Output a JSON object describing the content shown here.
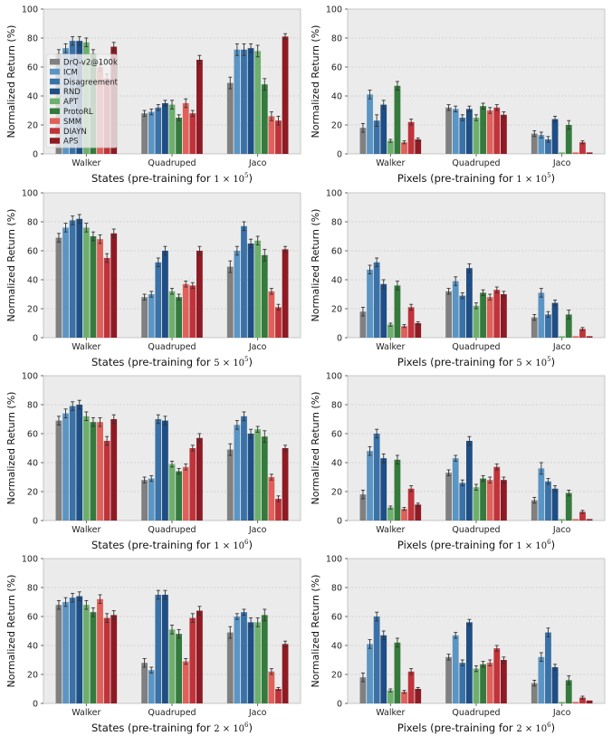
{
  "legend": [
    {
      "name": "DrQ-v2@100k",
      "color": "#808080"
    },
    {
      "name": "ICM",
      "color": "#5b95c3"
    },
    {
      "name": "Disagreement",
      "color": "#3a72a8"
    },
    {
      "name": "RND",
      "color": "#1f4e85"
    },
    {
      "name": "APT",
      "color": "#6db06d"
    },
    {
      "name": "ProtoRL",
      "color": "#357a3d"
    },
    {
      "name": "SMM",
      "color": "#e0605a"
    },
    {
      "name": "DIAYN",
      "color": "#c0333a"
    },
    {
      "name": "APS",
      "color": "#8e1b24"
    }
  ],
  "chart_data": [
    {
      "type": "bar",
      "panel": "states-1e5",
      "categories": [
        "Walker",
        "Quadruped",
        "Jaco"
      ],
      "xlabel": "States (pre-training for ",
      "xlabel_math": "1 × 10",
      "xlabel_exp": "5",
      "ylabel": "Normalized Return (%)",
      "ylim": [
        0,
        100
      ],
      "yticks": [
        "0",
        "20",
        "40",
        "60",
        "80",
        "100"
      ],
      "legend_placement": "top-left",
      "values": [
        [
          69,
          73,
          78,
          78,
          77,
          69,
          60,
          52,
          74
        ],
        [
          28,
          29,
          32,
          35,
          34,
          25,
          35,
          28,
          65
        ],
        [
          49,
          72,
          72,
          73,
          71,
          48,
          26,
          23,
          81
        ]
      ],
      "errors": [
        [
          3,
          3,
          3,
          3,
          3,
          3,
          3,
          3,
          3
        ],
        [
          2,
          2,
          2,
          2,
          3,
          2,
          3,
          2,
          3
        ],
        [
          4,
          4,
          4,
          3,
          4,
          4,
          3,
          3,
          2
        ]
      ]
    },
    {
      "type": "bar",
      "panel": "pixels-1e5",
      "categories": [
        "Walker",
        "Quadruped",
        "Jaco"
      ],
      "xlabel": "Pixels (pre-training for ",
      "xlabel_math": "1 × 10",
      "xlabel_exp": "5",
      "ylabel": "Normalized Return (%)",
      "ylim": [
        0,
        100
      ],
      "yticks": [
        "0",
        "20",
        "40",
        "60",
        "80",
        "100"
      ],
      "values": [
        [
          18,
          41,
          23,
          34,
          9,
          47,
          8,
          22,
          10
        ],
        [
          32,
          31,
          25,
          31,
          25,
          33,
          30,
          32,
          27
        ],
        [
          14,
          13,
          10,
          24,
          1,
          20,
          1,
          8,
          1
        ]
      ],
      "errors": [
        [
          3,
          3,
          4,
          3,
          1,
          3,
          1,
          2,
          1
        ],
        [
          2,
          2,
          2,
          2,
          2,
          2,
          2,
          2,
          2
        ],
        [
          2,
          2,
          2,
          2,
          0,
          3,
          0,
          1,
          0
        ]
      ]
    },
    {
      "type": "bar",
      "panel": "states-5e5",
      "categories": [
        "Walker",
        "Quadruped",
        "Jaco"
      ],
      "xlabel": "States (pre-training for ",
      "xlabel_math": "5 × 10",
      "xlabel_exp": "5",
      "ylabel": "Normalized Return (%)",
      "ylim": [
        0,
        100
      ],
      "yticks": [
        "0",
        "20",
        "40",
        "60",
        "80",
        "100"
      ],
      "values": [
        [
          69,
          76,
          81,
          82,
          76,
          70,
          68,
          55,
          72
        ],
        [
          28,
          30,
          52,
          60,
          32,
          28,
          37,
          36,
          60
        ],
        [
          49,
          60,
          77,
          65,
          67,
          57,
          32,
          21,
          61
        ]
      ],
      "errors": [
        [
          3,
          3,
          3,
          3,
          3,
          3,
          3,
          3,
          3
        ],
        [
          2,
          2,
          3,
          3,
          2,
          2,
          2,
          2,
          3
        ],
        [
          4,
          3,
          3,
          3,
          3,
          4,
          2,
          2,
          2
        ]
      ]
    },
    {
      "type": "bar",
      "panel": "pixels-5e5",
      "categories": [
        "Walker",
        "Quadruped",
        "Jaco"
      ],
      "xlabel": "Pixels (pre-training for ",
      "xlabel_math": "5 × 10",
      "xlabel_exp": "5",
      "ylabel": "Normalized Return (%)",
      "ylim": [
        0,
        100
      ],
      "yticks": [
        "0",
        "20",
        "40",
        "60",
        "80",
        "100"
      ],
      "values": [
        [
          18,
          47,
          52,
          37,
          9,
          36,
          8,
          21,
          10
        ],
        [
          32,
          39,
          29,
          48,
          22,
          31,
          28,
          33,
          30
        ],
        [
          14,
          31,
          16,
          24,
          1,
          16,
          1,
          6,
          1
        ]
      ],
      "errors": [
        [
          3,
          3,
          3,
          3,
          1,
          3,
          1,
          2,
          1
        ],
        [
          2,
          3,
          2,
          3,
          2,
          2,
          2,
          2,
          2
        ],
        [
          2,
          3,
          2,
          2,
          0,
          3,
          0,
          1,
          0
        ]
      ]
    },
    {
      "type": "bar",
      "panel": "states-1e6",
      "categories": [
        "Walker",
        "Quadruped",
        "Jaco"
      ],
      "xlabel": "States (pre-training for ",
      "xlabel_math": "1 × 10",
      "xlabel_exp": "6",
      "ylabel": "Normalized Return (%)",
      "ylim": [
        0,
        100
      ],
      "yticks": [
        "0",
        "20",
        "40",
        "60",
        "80",
        "100"
      ],
      "values": [
        [
          69,
          74,
          79,
          80,
          72,
          68,
          68,
          55,
          70
        ],
        [
          28,
          29,
          70,
          69,
          39,
          34,
          37,
          50,
          57
        ],
        [
          49,
          66,
          72,
          60,
          63,
          58,
          30,
          15,
          50
        ]
      ],
      "errors": [
        [
          3,
          3,
          3,
          3,
          3,
          3,
          3,
          3,
          3
        ],
        [
          2,
          2,
          3,
          3,
          2,
          2,
          2,
          2,
          3
        ],
        [
          4,
          3,
          3,
          3,
          2,
          4,
          2,
          2,
          2
        ]
      ]
    },
    {
      "type": "bar",
      "panel": "pixels-1e6",
      "categories": [
        "Walker",
        "Quadruped",
        "Jaco"
      ],
      "xlabel": "Pixels (pre-training for ",
      "xlabel_math": "1 × 10",
      "xlabel_exp": "6",
      "ylabel": "Normalized Return (%)",
      "ylim": [
        0,
        100
      ],
      "yticks": [
        "0",
        "20",
        "40",
        "60",
        "80",
        "100"
      ],
      "values": [
        [
          18,
          48,
          60,
          43,
          9,
          42,
          8,
          22,
          11
        ],
        [
          33,
          43,
          26,
          55,
          23,
          29,
          28,
          37,
          28
        ],
        [
          14,
          36,
          27,
          22,
          1,
          19,
          1,
          6,
          1
        ]
      ],
      "errors": [
        [
          3,
          3,
          3,
          3,
          1,
          3,
          1,
          2,
          1
        ],
        [
          2,
          2,
          2,
          3,
          2,
          2,
          2,
          2,
          2
        ],
        [
          2,
          4,
          2,
          2,
          0,
          2,
          0,
          1,
          0
        ]
      ]
    },
    {
      "type": "bar",
      "panel": "states-2e6",
      "categories": [
        "Walker",
        "Quadruped",
        "Jaco"
      ],
      "xlabel": "States (pre-training for ",
      "xlabel_math": "2 × 10",
      "xlabel_exp": "6",
      "ylabel": "Normalized Return (%)",
      "ylim": [
        0,
        100
      ],
      "yticks": [
        "0",
        "20",
        "40",
        "60",
        "80",
        "100"
      ],
      "values": [
        [
          68,
          70,
          73,
          74,
          68,
          63,
          72,
          59,
          61
        ],
        [
          28,
          23,
          75,
          75,
          51,
          48,
          29,
          59,
          64
        ],
        [
          49,
          60,
          63,
          56,
          56,
          61,
          22,
          10,
          41
        ]
      ],
      "errors": [
        [
          3,
          3,
          3,
          3,
          3,
          3,
          3,
          3,
          3
        ],
        [
          3,
          2,
          3,
          3,
          3,
          3,
          2,
          3,
          3
        ],
        [
          4,
          2,
          2,
          3,
          3,
          4,
          2,
          1,
          2
        ]
      ]
    },
    {
      "type": "bar",
      "panel": "pixels-2e6",
      "categories": [
        "Walker",
        "Quadruped",
        "Jaco"
      ],
      "xlabel": "Pixels (pre-training for ",
      "xlabel_math": "2 × 10",
      "xlabel_exp": "6",
      "ylabel": "Normalized Return (%)",
      "ylim": [
        0,
        100
      ],
      "yticks": [
        "0",
        "20",
        "40",
        "60",
        "80",
        "100"
      ],
      "values": [
        [
          18,
          41,
          60,
          47,
          9,
          42,
          8,
          22,
          10
        ],
        [
          32,
          47,
          28,
          56,
          24,
          27,
          28,
          38,
          30
        ],
        [
          14,
          32,
          49,
          25,
          1,
          16,
          1,
          4,
          2
        ]
      ],
      "errors": [
        [
          3,
          3,
          3,
          3,
          1,
          3,
          1,
          2,
          1
        ],
        [
          2,
          2,
          2,
          2,
          2,
          2,
          2,
          2,
          2
        ],
        [
          2,
          3,
          3,
          2,
          0,
          3,
          0,
          1,
          0
        ]
      ]
    }
  ]
}
